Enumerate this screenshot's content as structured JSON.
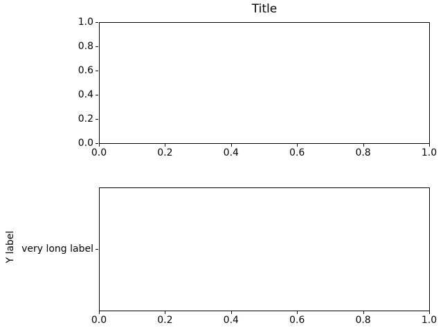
{
  "figure": {
    "background": "#ffffff",
    "text_color": "#000000",
    "spine_color": "#000000",
    "tick_color": "#000000"
  },
  "chart_data": [
    {
      "id": "top-subplot",
      "type": "line",
      "title": "Title",
      "xlabel": "",
      "ylabel": "",
      "xlim": [
        0.0,
        1.0
      ],
      "ylim": [
        0.0,
        1.0
      ],
      "xticks": [
        "0.0",
        "0.2",
        "0.4",
        "0.6",
        "0.8",
        "1.0"
      ],
      "yticks": [
        "0.0",
        "0.2",
        "0.4",
        "0.6",
        "0.8",
        "1.0"
      ],
      "series": [],
      "grid": false,
      "legend": null
    },
    {
      "id": "bottom-subplot",
      "type": "line",
      "title": "",
      "xlabel": "",
      "ylabel": "Y label",
      "xlim": [
        0.0,
        1.0
      ],
      "xticks": [
        "0.0",
        "0.2",
        "0.4",
        "0.6",
        "0.8",
        "1.0"
      ],
      "yticks": [
        "very long label"
      ],
      "series": [],
      "grid": false,
      "legend": null
    }
  ]
}
